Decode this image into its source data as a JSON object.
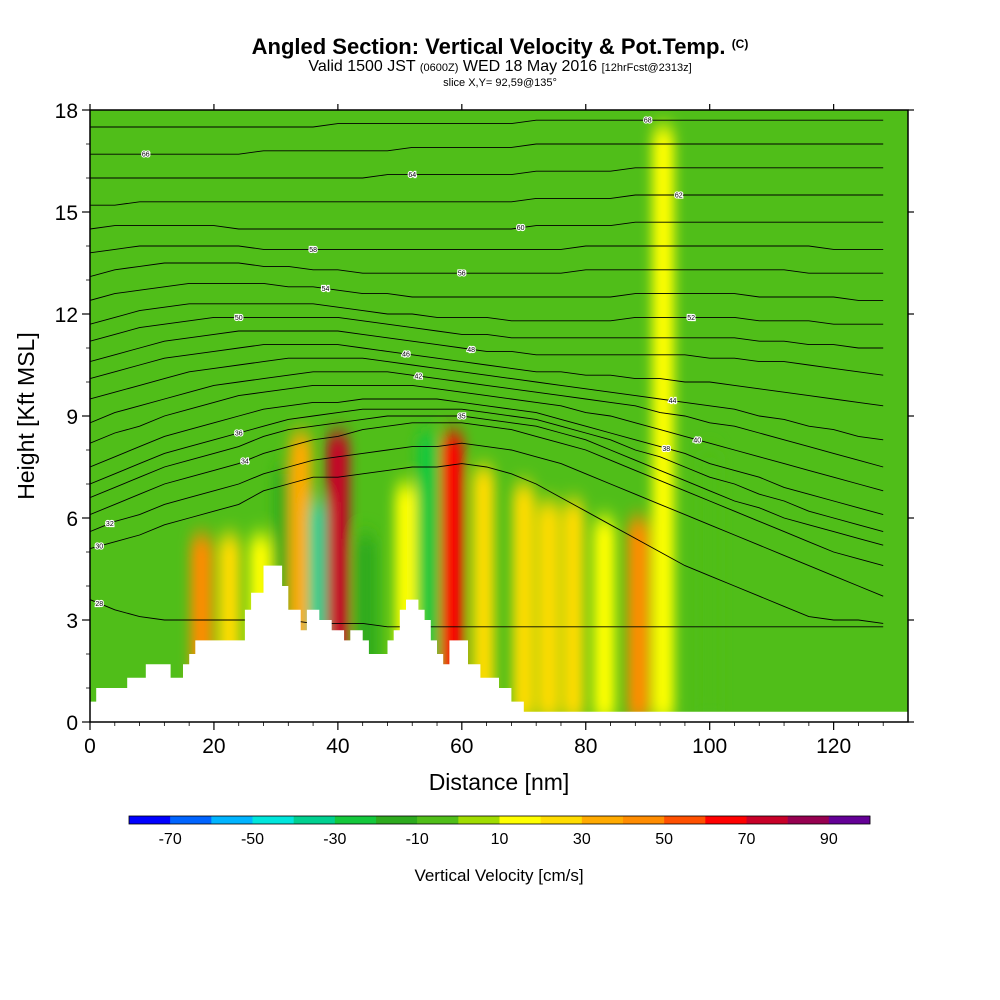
{
  "title": {
    "main": "Angled Section: Vertical Velocity & Pot.Temp.",
    "main_unit": "(C)",
    "line2_a": "Valid 1500 JST",
    "line2_b": "(0600Z)",
    "line2_c": "WED 18 May 2016",
    "line2_d": "[12hrFcst@2313z]",
    "line3": "slice X,Y= 92,59@135°"
  },
  "chart_data": {
    "type": "heatmap",
    "xlabel": "Distance [nm]",
    "ylabel": "Height [Kft MSL]",
    "xlim": [
      0,
      132
    ],
    "ylim": [
      0,
      18
    ],
    "x_ticks": [
      0,
      20,
      40,
      60,
      80,
      100,
      120
    ],
    "y_ticks": [
      0,
      3,
      6,
      9,
      12,
      15,
      18
    ],
    "colorbar": {
      "title": "Vertical Velocity [cm/s]",
      "labels": [
        "-70",
        "-50",
        "-30",
        "-10",
        "10",
        "30",
        "50",
        "70",
        "90"
      ],
      "colors": [
        "#0000ff",
        "#0064ff",
        "#00b4ff",
        "#00e6dc",
        "#00d090",
        "#14c83c",
        "#2daa1e",
        "#50be19",
        "#a0dc00",
        "#ffff00",
        "#ffdc00",
        "#ffaa00",
        "#ff8c00",
        "#ff5000",
        "#ff0000",
        "#c80028",
        "#960050",
        "#640096"
      ]
    },
    "velocity_cells": [
      {
        "x": 18,
        "y_top": 5.5,
        "value": 40
      },
      {
        "x": 22.5,
        "y_top": 5.5,
        "value": 25
      },
      {
        "x": 27.5,
        "y_top": 5.5,
        "value": 10
      },
      {
        "x": 31.5,
        "y_top": 7.5,
        "value": -20
      },
      {
        "x": 34,
        "y_top": 8.5,
        "value": 35
      },
      {
        "x": 37,
        "y_top": 6.5,
        "value": -40
      },
      {
        "x": 40,
        "y_top": 8.5,
        "value": 75
      },
      {
        "x": 44.5,
        "y_top": 5.5,
        "value": -15
      },
      {
        "x": 51,
        "y_top": 7.0,
        "value": 10
      },
      {
        "x": 54.5,
        "y_top": 8.5,
        "value": -25
      },
      {
        "x": 58.5,
        "y_top": 8.5,
        "value": 65
      },
      {
        "x": 63.5,
        "y_top": 7.5,
        "value": 20
      },
      {
        "x": 70,
        "y_top": 7.0,
        "value": 20
      },
      {
        "x": 74,
        "y_top": 6.5,
        "value": 25
      },
      {
        "x": 78,
        "y_top": 6.5,
        "value": 20
      },
      {
        "x": 83,
        "y_top": 6.0,
        "value": 15
      },
      {
        "x": 88.5,
        "y_top": 6.0,
        "value": 40
      },
      {
        "x": 92.5,
        "y_top": 17.5,
        "value": 10
      },
      {
        "x": 100,
        "y_top": 8.0,
        "value": -10
      }
    ],
    "isentropes": [
      {
        "label": "28",
        "label_x": 1.5,
        "y": [
          3.6,
          3.3,
          3.1,
          3.0,
          3.0,
          3.0,
          3.0,
          3.0,
          3.0,
          2.9,
          2.9,
          2.9,
          2.8,
          2.8,
          2.8,
          2.8,
          2.8,
          2.8,
          2.8,
          2.8,
          2.8,
          2.8,
          2.8,
          2.8,
          2.8,
          2.8,
          2.8,
          2.8,
          2.8,
          2.8,
          2.8,
          2.8,
          2.8
        ]
      },
      {
        "label": "30",
        "label_x": 1.5,
        "y": [
          5.1,
          5.3,
          5.5,
          5.8,
          6.0,
          6.2,
          6.4,
          6.8,
          7.0,
          7.2,
          7.2,
          7.3,
          7.4,
          7.5,
          7.5,
          7.6,
          7.5,
          7.3,
          7.0,
          6.6,
          6.2,
          5.8,
          5.4,
          5.0,
          4.6,
          4.3,
          4.0,
          3.7,
          3.4,
          3.1,
          3.0,
          3.0,
          2.9
        ]
      },
      {
        "label": "32",
        "label_x": 3.2,
        "y": [
          5.6,
          5.9,
          6.1,
          6.4,
          6.6,
          6.8,
          7.0,
          7.3,
          7.5,
          7.7,
          7.8,
          7.9,
          8.0,
          8.1,
          8.1,
          8.2,
          8.1,
          8.0,
          7.8,
          7.6,
          7.3,
          7.0,
          6.7,
          6.4,
          6.1,
          5.8,
          5.5,
          5.2,
          4.9,
          4.6,
          4.3,
          4.0,
          3.7
        ]
      },
      {
        "label": "34",
        "label_x": 25,
        "y": [
          6.1,
          6.4,
          6.7,
          7.0,
          7.2,
          7.4,
          7.6,
          7.9,
          8.1,
          8.3,
          8.4,
          8.6,
          8.7,
          8.8,
          8.8,
          8.8,
          8.7,
          8.6,
          8.4,
          8.2,
          8.0,
          7.7,
          7.4,
          7.1,
          6.8,
          6.5,
          6.2,
          5.9,
          5.6,
          5.3,
          5.0,
          4.8,
          4.6
        ]
      },
      {
        "label": "35",
        "label_x": 60,
        "y": [
          6.6,
          6.9,
          7.2,
          7.5,
          7.7,
          7.9,
          8.1,
          8.4,
          8.6,
          8.7,
          8.8,
          8.9,
          9.0,
          9.0,
          9.0,
          9.0,
          8.9,
          8.8,
          8.7,
          8.5,
          8.3,
          8.0,
          7.7,
          7.4,
          7.1,
          6.8,
          6.5,
          6.3,
          6.0,
          5.8,
          5.6,
          5.4,
          5.2
        ]
      },
      {
        "label": "36",
        "label_x": 24,
        "y": [
          7.0,
          7.3,
          7.6,
          7.9,
          8.1,
          8.3,
          8.5,
          8.7,
          8.9,
          9.0,
          9.1,
          9.2,
          9.2,
          9.2,
          9.2,
          9.2,
          9.1,
          9.0,
          8.9,
          8.7,
          8.5,
          8.3,
          8.0,
          7.8,
          7.5,
          7.2,
          7.0,
          6.7,
          6.5,
          6.2,
          6.0,
          5.8,
          5.6
        ]
      },
      {
        "label": "38",
        "label_x": 93,
        "y": [
          7.5,
          7.8,
          8.1,
          8.4,
          8.6,
          8.8,
          9.0,
          9.2,
          9.3,
          9.4,
          9.4,
          9.5,
          9.5,
          9.5,
          9.5,
          9.4,
          9.3,
          9.2,
          9.1,
          8.9,
          8.7,
          8.5,
          8.3,
          8.1,
          7.9,
          7.6,
          7.4,
          7.2,
          6.9,
          6.7,
          6.5,
          6.3,
          6.1
        ]
      },
      {
        "label": "40",
        "label_x": 98,
        "y": [
          8.2,
          8.5,
          8.7,
          9.0,
          9.2,
          9.4,
          9.6,
          9.7,
          9.8,
          9.9,
          9.9,
          9.9,
          9.9,
          9.9,
          9.8,
          9.7,
          9.6,
          9.5,
          9.4,
          9.3,
          9.1,
          9.0,
          8.8,
          8.6,
          8.4,
          8.2,
          8.0,
          7.8,
          7.6,
          7.4,
          7.2,
          7.0,
          6.8
        ]
      },
      {
        "label": "42",
        "label_x": 53,
        "y": [
          8.8,
          9.1,
          9.3,
          9.5,
          9.7,
          9.9,
          10.0,
          10.1,
          10.2,
          10.3,
          10.3,
          10.3,
          10.3,
          10.2,
          10.1,
          10.0,
          9.9,
          9.8,
          9.7,
          9.6,
          9.5,
          9.4,
          9.3,
          9.1,
          9.0,
          8.8,
          8.7,
          8.5,
          8.3,
          8.1,
          7.9,
          7.7,
          7.5
        ]
      },
      {
        "label": "44",
        "label_x": 94,
        "y": [
          9.5,
          9.7,
          9.9,
          10.1,
          10.3,
          10.4,
          10.5,
          10.6,
          10.7,
          10.7,
          10.7,
          10.7,
          10.6,
          10.5,
          10.4,
          10.3,
          10.2,
          10.1,
          10.0,
          9.9,
          9.8,
          9.7,
          9.6,
          9.5,
          9.4,
          9.3,
          9.2,
          9.0,
          8.9,
          8.7,
          8.6,
          8.4,
          8.3
        ]
      },
      {
        "label": "46",
        "label_x": 51,
        "y": [
          10.1,
          10.3,
          10.5,
          10.7,
          10.8,
          10.9,
          11.0,
          11.1,
          11.1,
          11.1,
          11.1,
          11.0,
          10.9,
          10.8,
          10.7,
          10.6,
          10.5,
          10.4,
          10.3,
          10.3,
          10.2,
          10.2,
          10.1,
          10.1,
          10.0,
          10.0,
          9.9,
          9.8,
          9.7,
          9.6,
          9.5,
          9.4,
          9.3
        ]
      },
      {
        "label": "48",
        "label_x": 61.5,
        "y": [
          10.6,
          10.8,
          11.0,
          11.2,
          11.3,
          11.4,
          11.5,
          11.5,
          11.5,
          11.5,
          11.5,
          11.4,
          11.3,
          11.2,
          11.1,
          11.0,
          10.9,
          10.9,
          10.8,
          10.8,
          10.8,
          10.8,
          10.8,
          10.8,
          10.8,
          10.7,
          10.7,
          10.6,
          10.6,
          10.5,
          10.4,
          10.3,
          10.2
        ]
      },
      {
        "label": "50",
        "label_x": 24,
        "y": [
          11.2,
          11.4,
          11.6,
          11.7,
          11.8,
          11.9,
          11.9,
          11.9,
          11.9,
          11.9,
          11.9,
          11.8,
          11.7,
          11.6,
          11.5,
          11.4,
          11.4,
          11.3,
          11.3,
          11.3,
          11.3,
          11.3,
          11.3,
          11.3,
          11.3,
          11.3,
          11.3,
          11.2,
          11.2,
          11.1,
          11.1,
          11.0,
          11.0
        ]
      },
      {
        "label": "52",
        "label_x": 97,
        "y": [
          11.7,
          11.9,
          12.1,
          12.2,
          12.3,
          12.3,
          12.3,
          12.3,
          12.3,
          12.3,
          12.2,
          12.1,
          12.0,
          12.0,
          11.9,
          11.9,
          11.9,
          11.8,
          11.8,
          11.8,
          11.8,
          11.8,
          11.9,
          11.9,
          11.9,
          11.9,
          11.9,
          11.8,
          11.8,
          11.8,
          11.7,
          11.7,
          11.7
        ]
      },
      {
        "label": "54",
        "label_x": 38,
        "y": [
          12.4,
          12.6,
          12.7,
          12.8,
          12.9,
          12.9,
          12.9,
          12.9,
          12.8,
          12.8,
          12.7,
          12.6,
          12.6,
          12.5,
          12.5,
          12.5,
          12.5,
          12.5,
          12.5,
          12.5,
          12.5,
          12.5,
          12.6,
          12.6,
          12.6,
          12.6,
          12.6,
          12.5,
          12.5,
          12.5,
          12.5,
          12.4,
          12.4
        ]
      },
      {
        "label": "56",
        "label_x": 60,
        "y": [
          13.1,
          13.3,
          13.4,
          13.5,
          13.5,
          13.5,
          13.5,
          13.4,
          13.4,
          13.3,
          13.3,
          13.2,
          13.2,
          13.2,
          13.2,
          13.2,
          13.2,
          13.2,
          13.2,
          13.2,
          13.3,
          13.3,
          13.3,
          13.3,
          13.3,
          13.3,
          13.3,
          13.3,
          13.3,
          13.2,
          13.2,
          13.2,
          13.2
        ]
      },
      {
        "label": "58",
        "label_x": 36,
        "y": [
          13.8,
          13.9,
          14.0,
          14.0,
          14.0,
          14.0,
          14.0,
          13.9,
          13.9,
          13.9,
          13.9,
          13.9,
          13.9,
          13.9,
          13.9,
          13.9,
          13.9,
          13.9,
          13.9,
          13.9,
          14.0,
          14.0,
          14.0,
          14.0,
          14.0,
          14.0,
          14.0,
          14.0,
          14.0,
          14.0,
          13.9,
          13.9,
          13.9
        ]
      },
      {
        "label": "60",
        "label_x": 69.5,
        "y": [
          14.5,
          14.6,
          14.6,
          14.6,
          14.6,
          14.6,
          14.5,
          14.5,
          14.5,
          14.5,
          14.5,
          14.5,
          14.5,
          14.5,
          14.5,
          14.5,
          14.5,
          14.5,
          14.6,
          14.6,
          14.6,
          14.6,
          14.7,
          14.7,
          14.7,
          14.7,
          14.7,
          14.7,
          14.7,
          14.7,
          14.7,
          14.7,
          14.7
        ]
      },
      {
        "label": "62",
        "label_x": 95,
        "y": [
          15.2,
          15.2,
          15.3,
          15.3,
          15.3,
          15.3,
          15.3,
          15.3,
          15.3,
          15.3,
          15.3,
          15.3,
          15.3,
          15.3,
          15.3,
          15.3,
          15.3,
          15.3,
          15.4,
          15.4,
          15.4,
          15.4,
          15.5,
          15.5,
          15.5,
          15.5,
          15.5,
          15.5,
          15.5,
          15.5,
          15.5,
          15.5,
          15.5
        ]
      },
      {
        "label": "64",
        "label_x": 52,
        "y": [
          16.0,
          16.0,
          16.0,
          16.0,
          16.0,
          16.0,
          16.0,
          16.0,
          16.0,
          16.0,
          16.0,
          16.0,
          16.1,
          16.1,
          16.1,
          16.1,
          16.1,
          16.1,
          16.2,
          16.2,
          16.2,
          16.2,
          16.3,
          16.3,
          16.3,
          16.3,
          16.3,
          16.3,
          16.3,
          16.3,
          16.3,
          16.3,
          16.3
        ]
      },
      {
        "label": "66",
        "label_x": 9,
        "y": [
          16.7,
          16.7,
          16.7,
          16.7,
          16.7,
          16.7,
          16.7,
          16.8,
          16.8,
          16.8,
          16.8,
          16.8,
          16.8,
          16.9,
          16.9,
          16.9,
          16.9,
          16.9,
          17.0,
          17.0,
          17.0,
          17.0,
          17.0,
          17.0,
          17.0,
          17.0,
          17.0,
          17.0,
          17.0,
          17.0,
          17.0,
          17.0,
          17.0
        ]
      },
      {
        "label": "68",
        "label_x": 90,
        "y": [
          17.5,
          17.5,
          17.5,
          17.5,
          17.5,
          17.5,
          17.5,
          17.5,
          17.5,
          17.5,
          17.6,
          17.6,
          17.6,
          17.6,
          17.6,
          17.6,
          17.6,
          17.6,
          17.7,
          17.7,
          17.7,
          17.7,
          17.7,
          17.7,
          17.7,
          17.7,
          17.7,
          17.7,
          17.7,
          17.7,
          17.7,
          17.7,
          17.7
        ]
      }
    ],
    "terrain": [
      [
        0,
        0.6
      ],
      [
        1,
        0.6
      ],
      [
        1,
        1.0
      ],
      [
        6,
        1.0
      ],
      [
        6,
        1.3
      ],
      [
        9,
        1.3
      ],
      [
        9,
        1.7
      ],
      [
        13,
        1.7
      ],
      [
        13,
        1.3
      ],
      [
        15,
        1.3
      ],
      [
        15,
        1.7
      ],
      [
        16,
        1.7
      ],
      [
        16,
        2.0
      ],
      [
        17,
        2.0
      ],
      [
        17,
        2.4
      ],
      [
        25,
        2.4
      ],
      [
        25,
        3.3
      ],
      [
        26,
        3.3
      ],
      [
        26,
        3.8
      ],
      [
        28,
        3.8
      ],
      [
        28,
        4.6
      ],
      [
        31,
        4.6
      ],
      [
        31,
        4.0
      ],
      [
        32,
        4.0
      ],
      [
        32,
        3.3
      ],
      [
        34,
        3.3
      ],
      [
        34,
        2.7
      ],
      [
        35,
        2.7
      ],
      [
        35,
        3.3
      ],
      [
        37,
        3.3
      ],
      [
        37,
        3.0
      ],
      [
        39,
        3.0
      ],
      [
        39,
        2.7
      ],
      [
        41,
        2.7
      ],
      [
        41,
        2.4
      ],
      [
        42,
        2.4
      ],
      [
        42,
        2.7
      ],
      [
        44,
        2.7
      ],
      [
        44,
        2.4
      ],
      [
        45,
        2.4
      ],
      [
        45,
        2.0
      ],
      [
        48,
        2.0
      ],
      [
        48,
        2.4
      ],
      [
        49,
        2.4
      ],
      [
        49,
        2.7
      ],
      [
        50,
        2.7
      ],
      [
        50,
        3.3
      ],
      [
        51,
        3.3
      ],
      [
        51,
        3.6
      ],
      [
        53,
        3.6
      ],
      [
        53,
        3.3
      ],
      [
        54,
        3.3
      ],
      [
        54,
        3.0
      ],
      [
        55,
        3.0
      ],
      [
        55,
        2.4
      ],
      [
        56,
        2.4
      ],
      [
        56,
        2.0
      ],
      [
        57,
        2.0
      ],
      [
        57,
        1.7
      ],
      [
        58,
        1.7
      ],
      [
        58,
        2.4
      ],
      [
        61,
        2.4
      ],
      [
        61,
        1.7
      ],
      [
        63,
        1.7
      ],
      [
        63,
        1.3
      ],
      [
        66,
        1.3
      ],
      [
        66,
        1.0
      ],
      [
        68,
        1.0
      ],
      [
        68,
        0.6
      ],
      [
        70,
        0.6
      ],
      [
        70,
        0.3
      ],
      [
        132,
        0.3
      ]
    ]
  }
}
